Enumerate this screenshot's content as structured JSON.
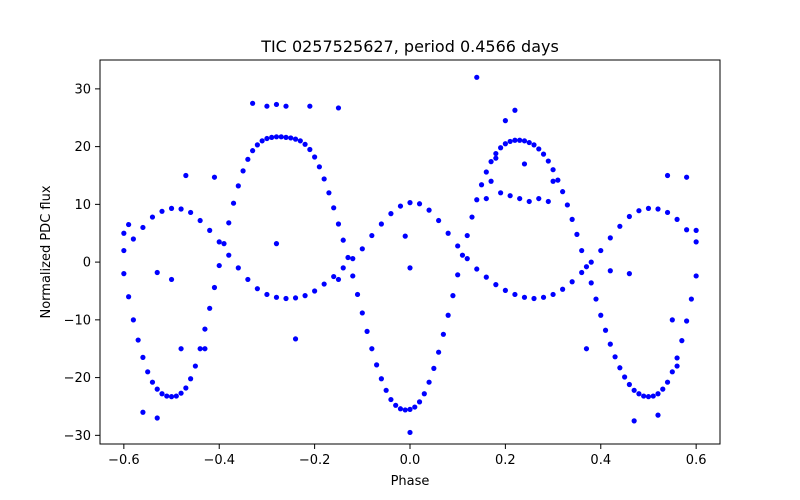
{
  "chart_data": {
    "type": "scatter",
    "title": "TIC 0257525627, period 0.4566 days",
    "xlabel": "Phase",
    "ylabel": "Normalized PDC flux",
    "xlim": [
      -0.65,
      0.65
    ],
    "ylim": [
      -31.5,
      35
    ],
    "xticks": [
      -0.6,
      -0.4,
      -0.2,
      0.0,
      0.2,
      0.4,
      0.6
    ],
    "xtick_labels": [
      "−0.6",
      "−0.4",
      "−0.2",
      "0.0",
      "0.2",
      "0.4",
      "0.6"
    ],
    "yticks": [
      -30,
      -20,
      -10,
      0,
      10,
      20,
      30
    ],
    "ytick_labels": [
      "−30",
      "−20",
      "−10",
      "0",
      "10",
      "20",
      "30"
    ],
    "grid": false,
    "marker_color": "#0000ff",
    "series": [
      {
        "points": [
          [
            -0.6,
            2.0
          ],
          [
            -0.58,
            4.0
          ],
          [
            -0.56,
            6.0
          ],
          [
            -0.54,
            7.8
          ],
          [
            -0.52,
            8.8
          ],
          [
            -0.5,
            9.3
          ],
          [
            -0.48,
            9.2
          ],
          [
            -0.46,
            8.6
          ],
          [
            -0.44,
            7.2
          ],
          [
            -0.42,
            5.5
          ],
          [
            -0.4,
            3.5
          ],
          [
            -0.38,
            1.2
          ],
          [
            -0.36,
            -1.0
          ],
          [
            -0.34,
            -3.0
          ],
          [
            -0.32,
            -4.6
          ],
          [
            -0.3,
            -5.6
          ],
          [
            -0.28,
            -6.1
          ],
          [
            -0.26,
            -6.3
          ],
          [
            -0.24,
            -6.2
          ],
          [
            -0.22,
            -5.8
          ],
          [
            -0.2,
            -5.0
          ],
          [
            -0.18,
            -3.8
          ],
          [
            -0.16,
            -2.5
          ],
          [
            -0.14,
            -1.0
          ],
          [
            -0.12,
            0.6
          ],
          [
            -0.1,
            2.3
          ],
          [
            -0.08,
            4.6
          ],
          [
            -0.06,
            6.6
          ],
          [
            -0.04,
            8.4
          ],
          [
            -0.02,
            9.7
          ],
          [
            0.0,
            10.3
          ],
          [
            0.02,
            10.1
          ],
          [
            0.04,
            9.0
          ],
          [
            0.06,
            7.2
          ],
          [
            0.08,
            5.0
          ],
          [
            0.1,
            2.8
          ],
          [
            0.12,
            0.6
          ],
          [
            0.14,
            -1.2
          ],
          [
            0.16,
            -2.6
          ],
          [
            0.18,
            -3.9
          ],
          [
            0.2,
            -4.9
          ],
          [
            0.22,
            -5.6
          ],
          [
            0.24,
            -6.1
          ],
          [
            0.26,
            -6.3
          ],
          [
            0.28,
            -6.1
          ],
          [
            0.3,
            -5.6
          ],
          [
            0.32,
            -4.7
          ],
          [
            0.34,
            -3.4
          ],
          [
            0.36,
            -1.8
          ],
          [
            0.38,
            0.0
          ],
          [
            0.4,
            2.0
          ],
          [
            0.42,
            4.2
          ],
          [
            0.44,
            6.2
          ],
          [
            0.46,
            7.9
          ],
          [
            0.48,
            8.9
          ],
          [
            0.5,
            9.3
          ],
          [
            0.52,
            9.2
          ],
          [
            0.54,
            8.6
          ],
          [
            0.56,
            7.4
          ],
          [
            0.58,
            5.6
          ],
          [
            0.6,
            3.5
          ]
        ]
      },
      {
        "points": [
          [
            -0.6,
            -2.0
          ],
          [
            -0.59,
            -6.0
          ],
          [
            -0.58,
            -10.0
          ],
          [
            -0.57,
            -13.5
          ],
          [
            -0.56,
            -16.5
          ],
          [
            -0.55,
            -19.0
          ],
          [
            -0.54,
            -20.8
          ],
          [
            -0.53,
            -22.0
          ],
          [
            -0.52,
            -22.8
          ],
          [
            -0.51,
            -23.2
          ],
          [
            -0.5,
            -23.3
          ],
          [
            -0.49,
            -23.2
          ],
          [
            -0.48,
            -22.7
          ],
          [
            -0.47,
            -21.8
          ],
          [
            -0.46,
            -20.2
          ],
          [
            -0.45,
            -18.0
          ],
          [
            -0.44,
            -15.0
          ],
          [
            -0.43,
            -11.6
          ],
          [
            -0.42,
            -8.0
          ],
          [
            -0.41,
            -4.4
          ],
          [
            -0.4,
            -0.6
          ],
          [
            -0.39,
            3.2
          ],
          [
            -0.38,
            6.8
          ],
          [
            -0.37,
            10.2
          ],
          [
            -0.36,
            13.2
          ],
          [
            -0.35,
            15.8
          ],
          [
            -0.34,
            17.8
          ],
          [
            -0.33,
            19.3
          ],
          [
            -0.32,
            20.3
          ],
          [
            -0.31,
            21.0
          ],
          [
            -0.3,
            21.4
          ],
          [
            -0.29,
            21.6
          ],
          [
            -0.28,
            21.7
          ],
          [
            -0.27,
            21.7
          ],
          [
            -0.26,
            21.6
          ],
          [
            -0.25,
            21.5
          ],
          [
            -0.24,
            21.3
          ],
          [
            -0.23,
            21.0
          ],
          [
            -0.22,
            20.4
          ],
          [
            -0.21,
            19.5
          ],
          [
            -0.2,
            18.2
          ],
          [
            -0.19,
            16.5
          ],
          [
            -0.18,
            14.4
          ],
          [
            -0.17,
            12.0
          ],
          [
            -0.16,
            9.4
          ],
          [
            -0.15,
            6.6
          ],
          [
            -0.14,
            3.8
          ],
          [
            -0.13,
            0.8
          ],
          [
            -0.12,
            -2.4
          ],
          [
            -0.11,
            -5.6
          ],
          [
            -0.1,
            -8.8
          ],
          [
            -0.09,
            -12.0
          ],
          [
            -0.08,
            -15.0
          ],
          [
            -0.07,
            -17.8
          ],
          [
            -0.06,
            -20.2
          ],
          [
            -0.05,
            -22.2
          ],
          [
            -0.04,
            -23.8
          ],
          [
            -0.03,
            -24.8
          ],
          [
            -0.02,
            -25.4
          ],
          [
            -0.01,
            -25.6
          ],
          [
            0.0,
            -25.5
          ],
          [
            0.01,
            -25.1
          ],
          [
            0.02,
            -24.2
          ],
          [
            0.03,
            -22.8
          ],
          [
            0.04,
            -20.8
          ],
          [
            0.05,
            -18.4
          ],
          [
            0.06,
            -15.6
          ],
          [
            0.07,
            -12.5
          ],
          [
            0.08,
            -9.2
          ],
          [
            0.09,
            -5.8
          ],
          [
            0.1,
            -2.2
          ],
          [
            0.11,
            1.2
          ],
          [
            0.12,
            4.6
          ],
          [
            0.13,
            7.8
          ],
          [
            0.14,
            10.8
          ],
          [
            0.15,
            13.4
          ],
          [
            0.16,
            15.6
          ],
          [
            0.17,
            17.4
          ],
          [
            0.18,
            18.8
          ],
          [
            0.19,
            19.8
          ],
          [
            0.2,
            20.5
          ],
          [
            0.21,
            20.9
          ],
          [
            0.22,
            21.1
          ],
          [
            0.23,
            21.1
          ],
          [
            0.24,
            21.0
          ],
          [
            0.25,
            20.7
          ],
          [
            0.26,
            20.3
          ],
          [
            0.27,
            19.6
          ],
          [
            0.28,
            18.7
          ],
          [
            0.29,
            17.5
          ],
          [
            0.3,
            16.0
          ],
          [
            0.31,
            14.2
          ],
          [
            0.32,
            12.2
          ],
          [
            0.33,
            9.9
          ],
          [
            0.34,
            7.4
          ],
          [
            0.35,
            4.8
          ],
          [
            0.36,
            2.0
          ],
          [
            0.37,
            -0.8
          ],
          [
            0.38,
            -3.6
          ],
          [
            0.39,
            -6.4
          ],
          [
            0.4,
            -9.2
          ],
          [
            0.41,
            -11.8
          ],
          [
            0.42,
            -14.2
          ],
          [
            0.43,
            -16.4
          ],
          [
            0.44,
            -18.3
          ],
          [
            0.45,
            -19.9
          ],
          [
            0.46,
            -21.2
          ],
          [
            0.47,
            -22.2
          ],
          [
            0.48,
            -22.8
          ],
          [
            0.49,
            -23.2
          ],
          [
            0.5,
            -23.3
          ],
          [
            0.51,
            -23.2
          ],
          [
            0.52,
            -22.8
          ],
          [
            0.53,
            -22.0
          ],
          [
            0.54,
            -20.8
          ],
          [
            0.55,
            -19.0
          ],
          [
            0.56,
            -16.6
          ],
          [
            0.57,
            -13.6
          ],
          [
            0.58,
            -10.2
          ],
          [
            0.59,
            -6.4
          ],
          [
            0.6,
            -2.4
          ]
        ]
      },
      {
        "points": [
          [
            0.14,
            32.0
          ],
          [
            -0.33,
            27.5
          ],
          [
            -0.3,
            27.0
          ],
          [
            -0.28,
            27.3
          ],
          [
            -0.26,
            27.0
          ],
          [
            -0.21,
            27.0
          ],
          [
            -0.15,
            26.7
          ],
          [
            0.22,
            26.3
          ],
          [
            0.2,
            24.5
          ],
          [
            0.18,
            18.0
          ],
          [
            0.17,
            14.0
          ],
          [
            0.16,
            11.0
          ],
          [
            0.19,
            12.0
          ],
          [
            0.21,
            11.5
          ],
          [
            0.23,
            11.0
          ],
          [
            0.25,
            10.5
          ],
          [
            0.27,
            11.0
          ],
          [
            0.29,
            10.5
          ],
          [
            0.3,
            14.0
          ],
          [
            0.24,
            17.0
          ],
          [
            -0.41,
            14.7
          ],
          [
            -0.47,
            15.0
          ],
          [
            0.54,
            15.0
          ],
          [
            0.58,
            14.7
          ],
          [
            -0.59,
            6.5
          ],
          [
            -0.6,
            5.0
          ],
          [
            0.6,
            5.5
          ],
          [
            -0.53,
            -1.8
          ],
          [
            -0.5,
            -3.0
          ],
          [
            0.0,
            -1.0
          ],
          [
            -0.01,
            4.5
          ],
          [
            0.42,
            -1.5
          ],
          [
            0.46,
            -2.0
          ],
          [
            -0.28,
            3.2
          ],
          [
            -0.24,
            -13.3
          ],
          [
            -0.15,
            -3.0
          ],
          [
            -0.48,
            -15.0
          ],
          [
            -0.43,
            -15.0
          ],
          [
            0.37,
            -15.0
          ],
          [
            0.55,
            -10.0
          ],
          [
            0.56,
            -18.0
          ],
          [
            -0.53,
            -27.0
          ],
          [
            0.47,
            -27.5
          ],
          [
            0.0,
            -29.5
          ],
          [
            -0.56,
            -26.0
          ],
          [
            0.52,
            -26.5
          ]
        ]
      }
    ]
  }
}
